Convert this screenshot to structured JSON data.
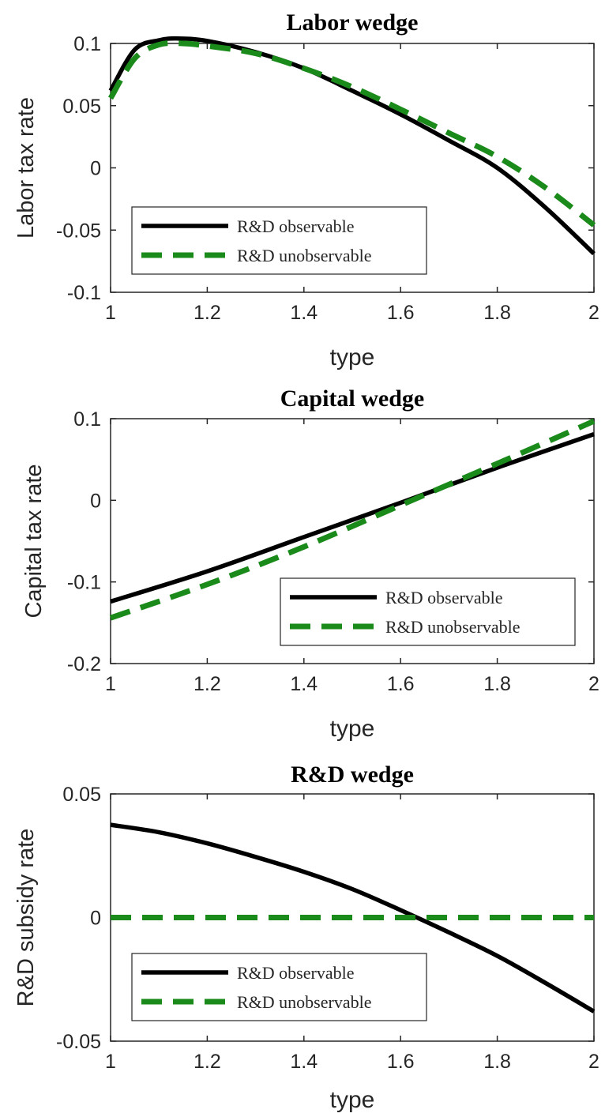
{
  "chart_data": [
    {
      "type": "line",
      "title": "Labor wedge",
      "xlabel": "type",
      "ylabel": "Labor tax rate",
      "xlim": [
        1,
        2
      ],
      "ylim": [
        -0.1,
        0.1
      ],
      "xticks": [
        "1",
        "1.2",
        "1.4",
        "1.6",
        "1.8",
        "2"
      ],
      "yticks": [
        "-0.1",
        "-0.05",
        "0",
        "0.05",
        "0.1"
      ],
      "legend_position": "bottom-left",
      "series": [
        {
          "name": "R&D observable",
          "color": "#000000",
          "style": "solid",
          "x": [
            1.0,
            1.05,
            1.1,
            1.14,
            1.2,
            1.3,
            1.4,
            1.5,
            1.6,
            1.7,
            1.8,
            1.9,
            2.0
          ],
          "y": [
            0.062,
            0.095,
            0.1025,
            0.104,
            0.102,
            0.093,
            0.08,
            0.062,
            0.043,
            0.022,
            0.0,
            -0.032,
            -0.069
          ]
        },
        {
          "name": "R&D unobservable",
          "color": "#1a8a1a",
          "style": "dashed",
          "x": [
            1.0,
            1.05,
            1.1,
            1.15,
            1.2,
            1.3,
            1.4,
            1.5,
            1.6,
            1.7,
            1.8,
            1.9,
            2.0
          ],
          "y": [
            0.056,
            0.088,
            0.099,
            0.1,
            0.098,
            0.092,
            0.08,
            0.065,
            0.047,
            0.028,
            0.009,
            -0.016,
            -0.046
          ]
        }
      ]
    },
    {
      "type": "line",
      "title": "Capital wedge",
      "xlabel": "type",
      "ylabel": "Capital tax rate",
      "xlim": [
        1,
        2
      ],
      "ylim": [
        -0.2,
        0.1
      ],
      "xticks": [
        "1",
        "1.2",
        "1.4",
        "1.6",
        "1.8",
        "2"
      ],
      "yticks": [
        "-0.2",
        "-0.1",
        "0",
        "0.1"
      ],
      "legend_position": "bottom-right",
      "series": [
        {
          "name": "R&D observable",
          "color": "#000000",
          "style": "solid",
          "x": [
            1.0,
            1.2,
            1.4,
            1.6,
            1.8,
            2.0
          ],
          "y": [
            -0.124,
            -0.087,
            -0.045,
            -0.003,
            0.04,
            0.081
          ]
        },
        {
          "name": "R&D unobservable",
          "color": "#1a8a1a",
          "style": "dashed",
          "x": [
            1.0,
            1.2,
            1.4,
            1.6,
            1.8,
            2.0
          ],
          "y": [
            -0.144,
            -0.103,
            -0.057,
            -0.006,
            0.045,
            0.097
          ]
        }
      ]
    },
    {
      "type": "line",
      "title": "R&D wedge",
      "xlabel": "type",
      "ylabel": "R&D subsidy rate",
      "xlim": [
        1,
        2
      ],
      "ylim": [
        -0.05,
        0.05
      ],
      "xticks": [
        "1",
        "1.2",
        "1.4",
        "1.6",
        "1.8",
        "2"
      ],
      "yticks": [
        "-0.05",
        "0",
        "0.05"
      ],
      "legend_position": "bottom-left",
      "series": [
        {
          "name": "R&D observable",
          "color": "#000000",
          "style": "solid",
          "x": [
            1.0,
            1.1,
            1.2,
            1.3,
            1.4,
            1.5,
            1.6,
            1.7,
            1.8,
            1.9,
            2.0
          ],
          "y": [
            0.0375,
            0.0345,
            0.03,
            0.0245,
            0.0185,
            0.0115,
            0.003,
            -0.006,
            -0.0155,
            -0.0265,
            -0.038
          ]
        },
        {
          "name": "R&D unobservable",
          "color": "#1a8a1a",
          "style": "dashed",
          "x": [
            1.0,
            2.0
          ],
          "y": [
            0.0,
            0.0
          ]
        }
      ]
    }
  ]
}
